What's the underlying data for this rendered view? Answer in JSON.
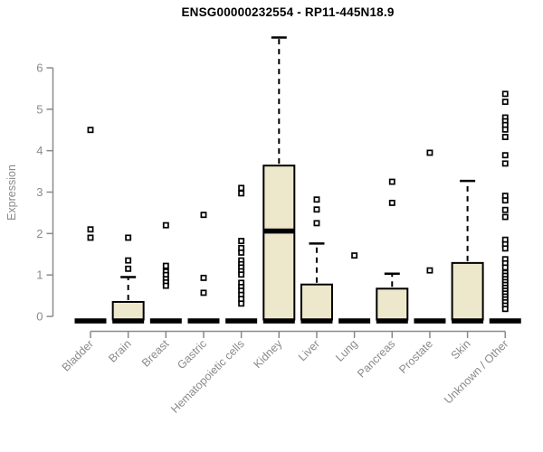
{
  "title": "ENSG00000232554 - RP11-445N18.9",
  "style": {
    "background": "#ffffff",
    "box_fill": "#EDE8CB",
    "box_stroke": "#000000",
    "median_color": "#000000",
    "whisker_color": "#000000",
    "outlier_stroke": "#000000",
    "outlier_fill": "#ffffff",
    "axis_color": "#8a8a8a",
    "tick_label_color": "#8a8a8a",
    "axis_title_color": "#8a8a8a",
    "title_color": "#000000"
  },
  "chart_data": {
    "type": "boxplot",
    "title": "ENSG00000232554 - RP11-445N18.9",
    "xlabel": "",
    "ylabel": "Expression",
    "ylim": [
      0,
      6.8
    ],
    "yticks": [
      0,
      1,
      2,
      3,
      4,
      5,
      6
    ],
    "grid": false,
    "legend": "none",
    "categories": [
      "Bladder",
      "Brain",
      "Breast",
      "Gastric",
      "Hematopoietic cells",
      "Kidney",
      "Liver",
      "Lung",
      "Pancreas",
      "Prostate",
      "Skin",
      "Unknown / Other"
    ],
    "boxes": [
      {
        "category": "Bladder",
        "slug": "bladder",
        "min": 0,
        "q1": 0,
        "median": 0,
        "q3": 0,
        "whisker_high": 0,
        "outliers": [
          4.5,
          2.1,
          1.9
        ]
      },
      {
        "category": "Brain",
        "slug": "brain",
        "min": 0,
        "q1": 0,
        "median": 0,
        "q3": 0.35,
        "whisker_high": 0.95,
        "outliers": [
          1.9,
          1.35,
          1.15
        ]
      },
      {
        "category": "Breast",
        "slug": "breast",
        "min": 0,
        "q1": 0,
        "median": 0,
        "q3": 0,
        "whisker_high": 0,
        "outliers": [
          2.2,
          1.22,
          1.08,
          1.0,
          0.9,
          0.82,
          0.74
        ]
      },
      {
        "category": "Gastric",
        "slug": "gastric",
        "min": 0,
        "q1": 0,
        "median": 0,
        "q3": 0,
        "whisker_high": 0,
        "outliers": [
          2.45,
          0.93,
          0.57
        ]
      },
      {
        "category": "Hematopoietic cells",
        "slug": "hematopoietic-cells",
        "min": 0,
        "q1": 0,
        "median": 0,
        "q3": 0,
        "whisker_high": 0,
        "outliers": [
          3.1,
          2.97,
          1.82,
          1.65,
          1.54,
          1.35,
          1.26,
          1.18,
          1.09,
          1.01,
          0.81,
          0.71,
          0.62,
          0.52,
          0.42,
          0.31
        ]
      },
      {
        "category": "Kidney",
        "slug": "kidney",
        "min": 0,
        "q1": 0,
        "median": 2.06,
        "q3": 3.64,
        "whisker_high": 6.73,
        "outliers": []
      },
      {
        "category": "Liver",
        "slug": "liver",
        "min": 0,
        "q1": 0,
        "median": 0,
        "q3": 0.77,
        "whisker_high": 1.76,
        "outliers": [
          2.82,
          2.58,
          2.25
        ]
      },
      {
        "category": "Lung",
        "slug": "lung",
        "min": 0,
        "q1": 0,
        "median": 0,
        "q3": 0,
        "whisker_high": 0,
        "outliers": [
          1.47
        ]
      },
      {
        "category": "Pancreas",
        "slug": "pancreas",
        "min": 0,
        "q1": 0,
        "median": 0,
        "q3": 0.67,
        "whisker_high": 1.03,
        "outliers": [
          3.25,
          2.74
        ]
      },
      {
        "category": "Prostate",
        "slug": "prostate",
        "min": 0,
        "q1": 0,
        "median": 0,
        "q3": 0,
        "whisker_high": 0,
        "outliers": [
          3.95,
          1.11
        ]
      },
      {
        "category": "Skin",
        "slug": "skin",
        "min": 0,
        "q1": 0,
        "median": 0,
        "q3": 1.29,
        "whisker_high": 3.27,
        "outliers": []
      },
      {
        "category": "Unknown / Other",
        "slug": "unknown-other",
        "min": 0,
        "q1": 0,
        "median": 0,
        "q3": 0,
        "whisker_high": 0,
        "outliers": [
          5.37,
          5.18,
          4.8,
          4.71,
          4.62,
          4.51,
          4.33,
          3.89,
          3.69,
          2.91,
          2.8,
          2.57,
          2.4,
          1.85,
          1.74,
          1.64,
          1.38,
          1.28,
          1.18,
          1.05,
          0.98,
          0.9,
          0.83,
          0.76,
          0.69,
          0.62,
          0.55,
          0.48,
          0.41,
          0.34,
          0.26,
          0.18
        ]
      }
    ]
  }
}
